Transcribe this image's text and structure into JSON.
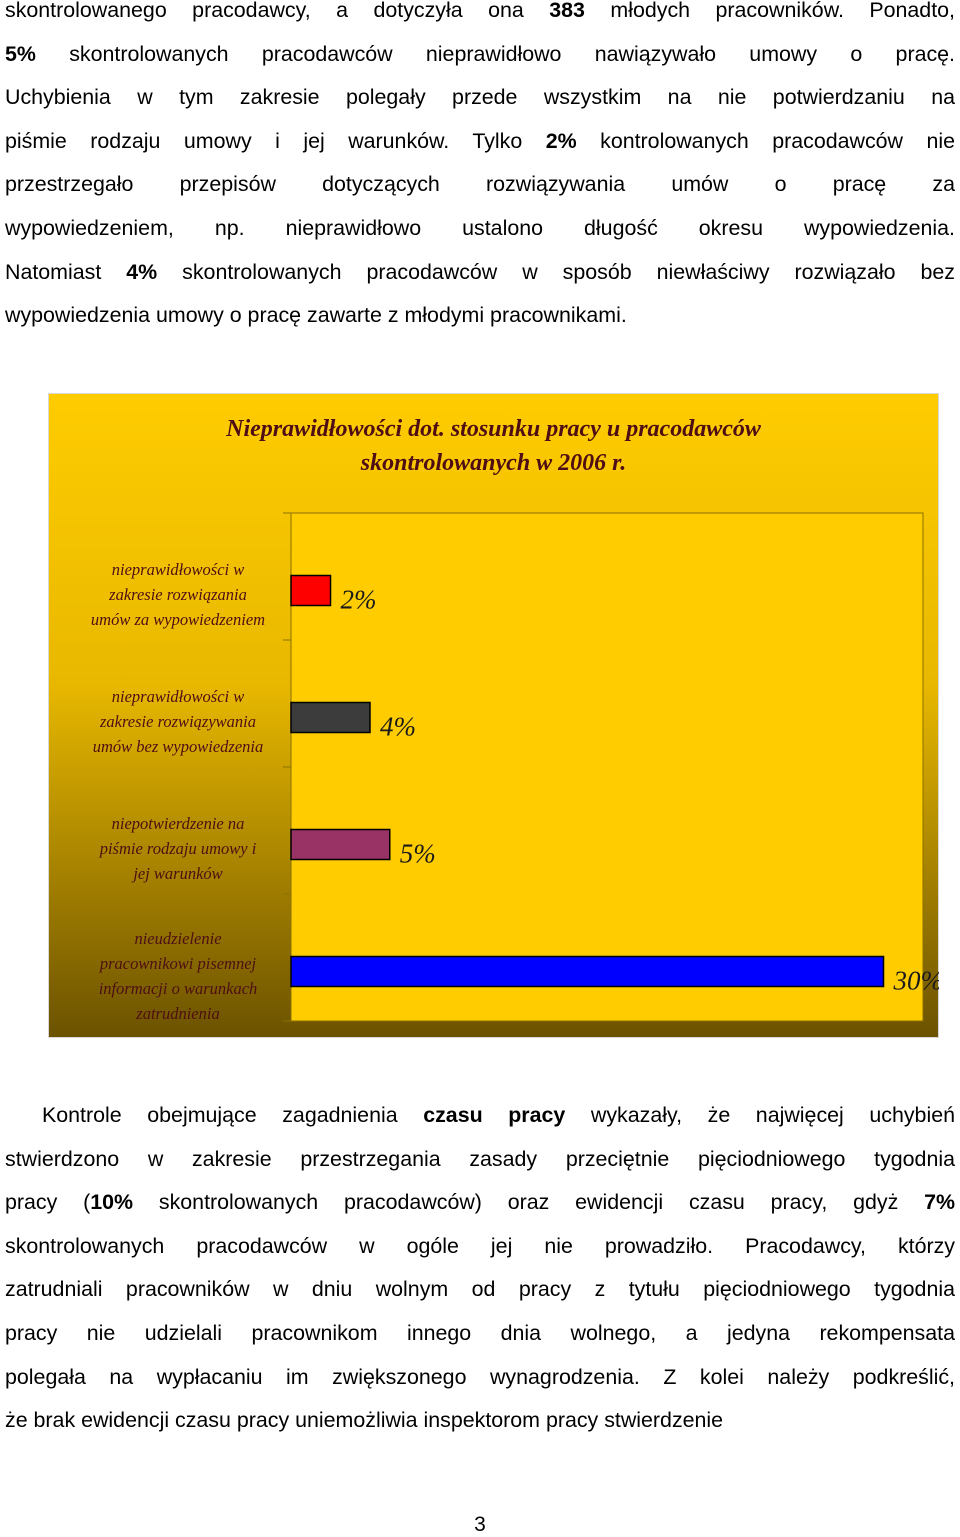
{
  "top_paragraph": {
    "lines": [
      [
        "skontrolowanego pracodawcy, a dotyczyła ona ",
        "383",
        " młodych pracowników. Ponadto,"
      ],
      [
        "",
        "5%",
        " skontrolowanych pracodawców nieprawidłowo nawiązywało umowy o pracę."
      ],
      [
        "Uchybienia w tym zakresie polegały przede wszystkim na nie potwierdzaniu na"
      ],
      [
        "piśmie rodzaju umowy i jej warunków. Tylko ",
        "2%",
        " kontrolowanych pracodawców nie"
      ],
      [
        "przestrzegało przepisów dotyczących rozwiązywania umów o pracę za"
      ],
      [
        "wypowiedzeniem, np. nieprawidłowo ustalono długość okresu wypowiedzenia."
      ],
      [
        "Natomiast ",
        "4%",
        " skontrolowanych pracodawców w sposób niewłaściwy rozwiązało bez"
      ],
      [
        "wypowiedzenia umowy o pracę zawarte z młodymi pracownikami."
      ]
    ]
  },
  "chart_data": {
    "type": "bar",
    "orientation": "horizontal",
    "title": "Nieprawidłowości dot. stosunku pracy u pracodawców skontrolowanych w 2006 r.",
    "title_lines": [
      "Nieprawidłowości dot. stosunku pracy u pracodawców",
      "skontrolowanych w 2006 r."
    ],
    "categories": [
      "nieprawidłowości w\nzakresie rozwiązania\numów za wypowiedzeniem",
      "nieprawidłowości w\nzakresie rozwiązywania\numów bez wypowiedzenia",
      "niepotwierdzenie na\npiśmie rodzaju umowy i\njej warunków",
      "nieudzielenie\npracownikowi pisemnej\ninformacji o warunkach\nzatrudnienia"
    ],
    "values": [
      2,
      4,
      5,
      30
    ],
    "value_labels": [
      "2%",
      "4%",
      "5%",
      "30%"
    ],
    "bar_colors": [
      "#ff0000",
      "#3c3c3c",
      "#993366",
      "#0000ff"
    ],
    "xlim": [
      0,
      32
    ],
    "unit": "%",
    "background_colors": {
      "outer_top": "#ffcc00",
      "outer_bottom": "#6b5200",
      "plot": "#ffcc00"
    },
    "grid": false,
    "legend": "none"
  },
  "bottom_paragraph": {
    "lines": [
      [
        "Kontrole obejmujące zagadnienia ",
        "czasu pracy",
        " wykazały, że najwięcej uchybień"
      ],
      [
        "stwierdzono w zakresie przestrzegania zasady przeciętnie pięciodniowego tygodnia"
      ],
      [
        "pracy (",
        "10%",
        " skontrolowanych pracodawców) oraz ewidencji czasu pracy, gdyż ",
        "7%"
      ],
      [
        "skontrolowanych pracodawców w ogóle jej nie prowadziło. Pracodawcy, którzy"
      ],
      [
        "zatrudniali pracowników w dniu wolnym od pracy z tytułu pięciodniowego tygodnia"
      ],
      [
        "pracy nie udzielali pracownikom innego dnia wolnego, a jedyna rekompensata"
      ],
      [
        "polegała na wypłacaniu im zwiększonego wynagrodzenia. Z kolei należy podkreślić,"
      ],
      [
        "że brak ewidencji czasu pracy uniemożliwia inspektorom pracy stwierdzenie"
      ]
    ]
  },
  "page_number": "3"
}
